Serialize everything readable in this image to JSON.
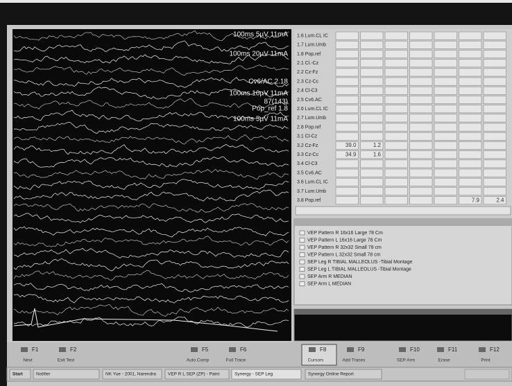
{
  "waveform_labels": [
    "100ms 5µV 11mA",
    "100ms 20µV 11mA",
    "Cv6/AC 2.18",
    "100ms 10µV 11mA",
    "87(143)",
    "Pop_ref 1.8",
    "100ms 5µV 11mA"
  ],
  "table": {
    "rows": [
      [
        "1.6 Lum.CL IC",
        null,
        null,
        null,
        null,
        null,
        null,
        null
      ],
      [
        "1.7 Lum.Umb",
        null,
        null,
        null,
        null,
        null,
        null,
        null
      ],
      [
        "1.8 Pop.ref",
        null,
        null,
        null,
        null,
        null,
        null,
        null
      ],
      [
        "2.1 Cl.-Cz",
        null,
        null,
        null,
        null,
        null,
        null,
        null
      ],
      [
        "2.2 Cz-Fz",
        null,
        null,
        null,
        null,
        null,
        null,
        null
      ],
      [
        "2.3 Cz-Cc",
        null,
        null,
        null,
        null,
        null,
        null,
        null
      ],
      [
        "2.4 Cl-C3",
        null,
        null,
        null,
        null,
        null,
        null,
        null
      ],
      [
        "2.5 Cv6.AC",
        null,
        null,
        null,
        null,
        null,
        null,
        null
      ],
      [
        "2.6 Lum.CL IC",
        null,
        null,
        null,
        null,
        null,
        null,
        null
      ],
      [
        "2.7 Lum.Umb",
        null,
        null,
        null,
        null,
        null,
        null,
        null
      ],
      [
        "2.8 Pop.ref",
        null,
        null,
        null,
        null,
        null,
        null,
        null
      ],
      [
        "3.1 Cl-Cz",
        null,
        null,
        null,
        null,
        null,
        null,
        null
      ],
      [
        "3.2 Cz-Fz",
        "39.0",
        "1.2",
        null,
        null,
        null,
        null,
        null
      ],
      [
        "3.3 Cz-Cc",
        "34.9",
        "1.6",
        null,
        null,
        null,
        null,
        null
      ],
      [
        "3.4 Cl-C3",
        null,
        null,
        null,
        null,
        null,
        null,
        null
      ],
      [
        "3.5 Cv6.AC",
        null,
        null,
        null,
        null,
        null,
        null,
        null
      ],
      [
        "3.6 Lum.CL IC",
        null,
        null,
        null,
        null,
        null,
        null,
        null
      ],
      [
        "3.7 Lum.Umb",
        null,
        null,
        null,
        null,
        null,
        null,
        null
      ],
      [
        "3.8 Pop.ref",
        null,
        null,
        null,
        null,
        null,
        "7.9",
        "2.4"
      ]
    ]
  },
  "protocols": [
    "VEP Pattern R 16x16 Large 78 Cm",
    "VEP Pattern L 16x16 Large 78 Cm",
    "VEP Pattern R 32x32 Small 78 cm",
    "VEP Pattern L 32x32 Small 78 cm",
    "SEP Leg R TIBIAL MALLEOLUS -Tibial Montage",
    "SEP Leg L TIBIAL MALLEOLUS -Tibial Montage",
    "SEP Arm R MEDIAN",
    "SEP Arm L MEDIAN"
  ],
  "function_keys": [
    {
      "key": "F1",
      "label": "Next"
    },
    {
      "key": "F2",
      "label": "Exit Test"
    },
    {
      "key": "F5",
      "label": "Auto Comp"
    },
    {
      "key": "F6",
      "label": "Full Trace"
    },
    {
      "key": "F8",
      "label": "Cursors"
    },
    {
      "key": "F9",
      "label": "Add Traces"
    },
    {
      "key": "F10",
      "label": "SEP Arm"
    },
    {
      "key": "F11",
      "label": "Erase"
    },
    {
      "key": "F12",
      "label": "Print"
    }
  ],
  "taskbar": [
    "Start",
    "Notifier",
    "NK Yue - 2001, Narendra",
    "VEP R L SEP (ZP) - Paint",
    "Synergy - SEP Leg",
    "Synergy Online Report"
  ]
}
